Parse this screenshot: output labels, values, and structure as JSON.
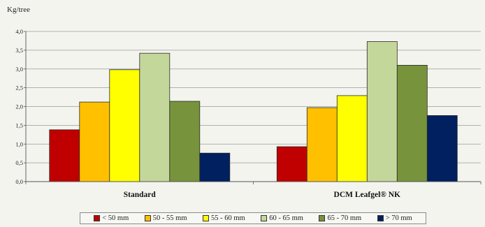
{
  "chart_data": {
    "type": "bar",
    "ylabel": "Kg/tree",
    "xlabel": "",
    "title": "",
    "ylim": [
      0,
      4.0
    ],
    "yticks": [
      "0,0",
      "0,5",
      "1,0",
      "1,5",
      "2,0",
      "2,5",
      "3,0",
      "3,5",
      "4,0"
    ],
    "grid": true,
    "legend_position": "bottom",
    "categories": [
      "Standard",
      "DCM Leafgel® NK"
    ],
    "series": [
      {
        "name": "< 50 mm",
        "color": "#c00000",
        "values": [
          1.38,
          0.93
        ]
      },
      {
        "name": "50 - 55 mm",
        "color": "#ffc000",
        "values": [
          2.12,
          1.97
        ]
      },
      {
        "name": "55 - 60 mm",
        "color": "#ffff00",
        "values": [
          2.98,
          2.29
        ]
      },
      {
        "name": "60 - 65 mm",
        "color": "#c4d79b",
        "values": [
          3.42,
          3.73
        ]
      },
      {
        "name": "65 - 70 mm",
        "color": "#77933c",
        "values": [
          2.14,
          3.1
        ]
      },
      {
        "name": "> 70 mm",
        "color": "#002060",
        "values": [
          0.76,
          1.76
        ]
      }
    ]
  }
}
